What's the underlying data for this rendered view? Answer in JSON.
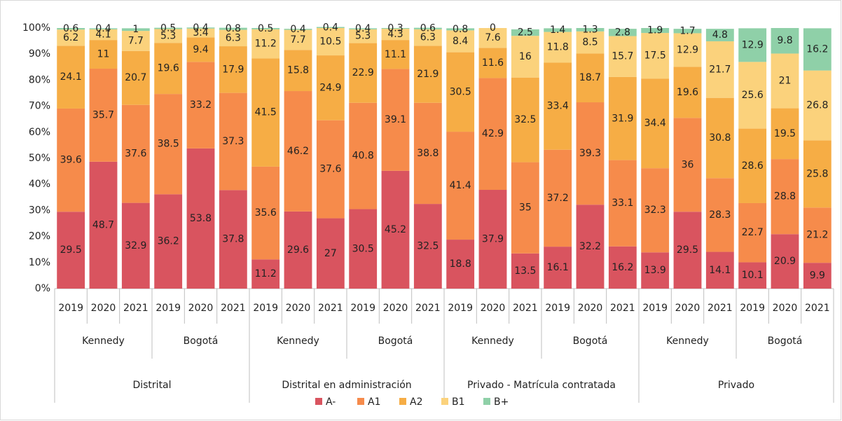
{
  "chart_data": {
    "type": "stacked_bar_100",
    "category_levels": [
      [
        "2019",
        "2020",
        "2021",
        "2019",
        "2020",
        "2021",
        "2019",
        "2020",
        "2021",
        "2019",
        "2020",
        "2021",
        "2019",
        "2020",
        "2021",
        "2019",
        "2020",
        "2021",
        "2019",
        "2020",
        "2021",
        "2019",
        "2020",
        "2021"
      ],
      [
        "Kennedy",
        "Bogotá",
        "Kennedy",
        "Bogotá",
        "Kennedy",
        "Bogotá",
        "Kennedy",
        "Bogotá"
      ],
      [
        "Distrital",
        "Distrital en administración",
        "Privado - Matrícula contratada",
        "Privado"
      ]
    ],
    "series": [
      {
        "name": "A-",
        "color": "#d9545f",
        "values": [
          29.5,
          48.7,
          32.9,
          36.2,
          53.8,
          37.8,
          11.2,
          29.6,
          27,
          30.5,
          45.2,
          32.5,
          18.8,
          37.9,
          13.5,
          16.1,
          32.2,
          16.2,
          13.9,
          29.5,
          14.1,
          10.1,
          20.9,
          9.9
        ]
      },
      {
        "name": "A1",
        "color": "#f68b4b",
        "values": [
          39.6,
          35.7,
          37.6,
          38.5,
          33.2,
          37.3,
          35.6,
          46.2,
          37.6,
          40.8,
          39.1,
          38.8,
          41.4,
          42.9,
          35,
          37.2,
          39.3,
          33.1,
          32.3,
          36,
          28.3,
          22.7,
          28.8,
          21.2
        ]
      },
      {
        "name": "A2",
        "color": "#f6ad45",
        "values": [
          24.1,
          11,
          20.7,
          19.6,
          9.4,
          17.9,
          41.5,
          15.8,
          24.9,
          22.9,
          11.1,
          21.9,
          30.5,
          11.6,
          32.5,
          33.4,
          18.7,
          31.9,
          34.4,
          19.6,
          30.8,
          28.6,
          19.5,
          25.8
        ]
      },
      {
        "name": "B1",
        "color": "#fbd27c",
        "values": [
          6.2,
          4.1,
          7.7,
          5.3,
          3.4,
          6.3,
          11.2,
          7.7,
          10.5,
          5.3,
          4.3,
          6.3,
          8.4,
          7.6,
          16,
          11.8,
          8.5,
          15.7,
          17.5,
          12.9,
          21.7,
          25.6,
          21,
          26.8
        ]
      },
      {
        "name": "B+",
        "color": "#8fd0a8",
        "values": [
          0.6,
          0.4,
          1,
          0.5,
          0.4,
          0.8,
          0.5,
          0.4,
          0.4,
          0.4,
          0.3,
          0.6,
          0.8,
          0,
          2.5,
          1.4,
          1.3,
          2.8,
          1.9,
          1.7,
          4.8,
          12.9,
          9.8,
          16.2
        ]
      }
    ],
    "ylim": [
      0,
      100
    ],
    "yticks": [
      {
        "value": 0,
        "label": "0%"
      },
      {
        "value": 10,
        "label": "10%"
      },
      {
        "value": 20,
        "label": "20%"
      },
      {
        "value": 30,
        "label": "30%"
      },
      {
        "value": 40,
        "label": "40%"
      },
      {
        "value": 50,
        "label": "50%"
      },
      {
        "value": 60,
        "label": "60%"
      },
      {
        "value": 70,
        "label": "70%"
      },
      {
        "value": 80,
        "label": "80%"
      },
      {
        "value": 90,
        "label": "90%"
      },
      {
        "value": 100,
        "label": "100%"
      }
    ],
    "legend": "bottom"
  }
}
